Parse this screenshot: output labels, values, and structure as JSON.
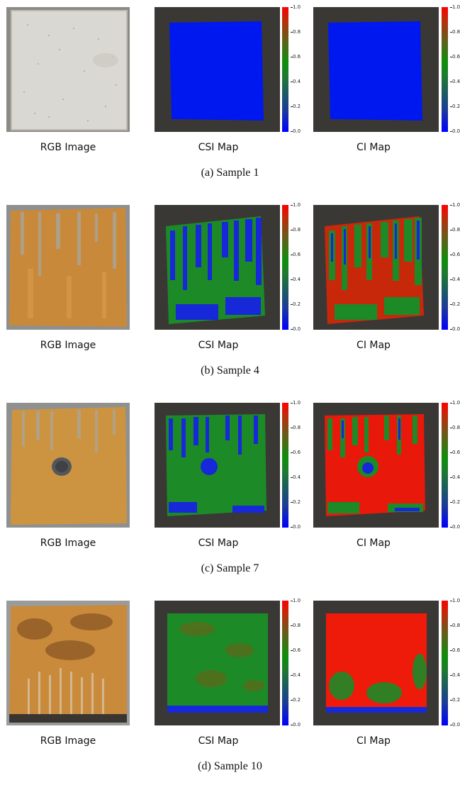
{
  "figure": {
    "column_labels": [
      "RGB Image",
      "CSI Map",
      "CI Map"
    ],
    "colorbar_ticks": [
      "1.0",
      "0.8",
      "0.6",
      "0.4",
      "0.2",
      "0.0"
    ],
    "colormap": [
      "#0000ff",
      "#1e7a2e",
      "#ff0000"
    ],
    "panels": [
      {
        "caption": "(a) Sample 1"
      },
      {
        "caption": "(b) Sample 4"
      },
      {
        "caption": "(c) Sample 7"
      },
      {
        "caption": "(d) Sample 10"
      }
    ]
  }
}
